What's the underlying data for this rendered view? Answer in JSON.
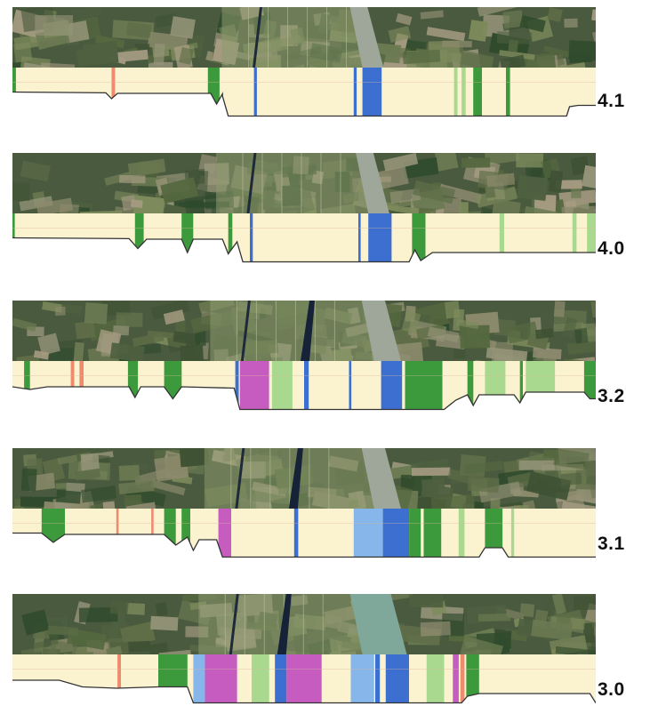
{
  "colors": {
    "base": "#fbf2cf",
    "forest": "#3c9a3c",
    "grass": "#a9d98e",
    "urban": "#ef8a6e",
    "water": "#3d6fd0",
    "water_shallow": "#86b6ea",
    "industrial": "#c65bc0",
    "profile_line": "#333333",
    "satellite_dark": "#4a5a3e",
    "satellite_light": "#7e8c66",
    "river": "#9fa79a",
    "canal": "#1e2a3a"
  },
  "panels": [
    {
      "label": "4.1",
      "segments": [
        {
          "from": 0.0,
          "to": 0.006,
          "type": "forest"
        },
        {
          "from": 0.17,
          "to": 0.176,
          "type": "urban"
        },
        {
          "from": 0.335,
          "to": 0.355,
          "type": "forest"
        },
        {
          "from": 0.414,
          "to": 0.419,
          "type": "water"
        },
        {
          "from": 0.585,
          "to": 0.59,
          "type": "water"
        },
        {
          "from": 0.6,
          "to": 0.633,
          "type": "water"
        },
        {
          "from": 0.757,
          "to": 0.763,
          "type": "grass"
        },
        {
          "from": 0.77,
          "to": 0.777,
          "type": "grass"
        },
        {
          "from": 0.79,
          "to": 0.805,
          "type": "forest"
        },
        {
          "from": 0.846,
          "to": 0.853,
          "type": "forest"
        }
      ]
    },
    {
      "label": "4.0",
      "segments": [
        {
          "from": 0.0,
          "to": 0.004,
          "type": "forest"
        },
        {
          "from": 0.21,
          "to": 0.225,
          "type": "forest"
        },
        {
          "from": 0.29,
          "to": 0.31,
          "type": "forest"
        },
        {
          "from": 0.37,
          "to": 0.377,
          "type": "forest"
        },
        {
          "from": 0.407,
          "to": 0.412,
          "type": "water"
        },
        {
          "from": 0.593,
          "to": 0.597,
          "type": "water"
        },
        {
          "from": 0.61,
          "to": 0.65,
          "type": "water"
        },
        {
          "from": 0.685,
          "to": 0.708,
          "type": "forest"
        },
        {
          "from": 0.835,
          "to": 0.843,
          "type": "grass"
        },
        {
          "from": 0.96,
          "to": 0.967,
          "type": "grass"
        },
        {
          "from": 0.985,
          "to": 1.0,
          "type": "grass"
        }
      ]
    },
    {
      "label": "3.2",
      "segments": [
        {
          "from": 0.02,
          "to": 0.03,
          "type": "forest"
        },
        {
          "from": 0.1,
          "to": 0.106,
          "type": "urban"
        },
        {
          "from": 0.115,
          "to": 0.122,
          "type": "urban"
        },
        {
          "from": 0.198,
          "to": 0.215,
          "type": "forest"
        },
        {
          "from": 0.26,
          "to": 0.29,
          "type": "forest"
        },
        {
          "from": 0.382,
          "to": 0.388,
          "type": "water"
        },
        {
          "from": 0.39,
          "to": 0.44,
          "type": "industrial"
        },
        {
          "from": 0.445,
          "to": 0.48,
          "type": "grass"
        },
        {
          "from": 0.5,
          "to": 0.508,
          "type": "water"
        },
        {
          "from": 0.577,
          "to": 0.581,
          "type": "water"
        },
        {
          "from": 0.632,
          "to": 0.668,
          "type": "water"
        },
        {
          "from": 0.673,
          "to": 0.737,
          "type": "forest"
        },
        {
          "from": 0.78,
          "to": 0.79,
          "type": "forest"
        },
        {
          "from": 0.81,
          "to": 0.845,
          "type": "grass"
        },
        {
          "from": 0.87,
          "to": 0.875,
          "type": "forest"
        },
        {
          "from": 0.88,
          "to": 0.93,
          "type": "grass"
        },
        {
          "from": 0.98,
          "to": 1.0,
          "type": "forest"
        }
      ]
    },
    {
      "label": "3.1",
      "segments": [
        {
          "from": 0.05,
          "to": 0.09,
          "type": "forest"
        },
        {
          "from": 0.178,
          "to": 0.182,
          "type": "urban"
        },
        {
          "from": 0.238,
          "to": 0.242,
          "type": "urban"
        },
        {
          "from": 0.26,
          "to": 0.28,
          "type": "forest"
        },
        {
          "from": 0.29,
          "to": 0.305,
          "type": "forest"
        },
        {
          "from": 0.353,
          "to": 0.375,
          "type": "industrial"
        },
        {
          "from": 0.483,
          "to": 0.49,
          "type": "water"
        },
        {
          "from": 0.585,
          "to": 0.635,
          "type": "water_shallow"
        },
        {
          "from": 0.635,
          "to": 0.68,
          "type": "water"
        },
        {
          "from": 0.68,
          "to": 0.7,
          "type": "forest"
        },
        {
          "from": 0.705,
          "to": 0.735,
          "type": "forest"
        },
        {
          "from": 0.765,
          "to": 0.775,
          "type": "grass"
        },
        {
          "from": 0.81,
          "to": 0.84,
          "type": "forest"
        },
        {
          "from": 0.855,
          "to": 0.86,
          "type": "grass"
        }
      ]
    },
    {
      "label": "3.0",
      "segments": [
        {
          "from": 0.18,
          "to": 0.186,
          "type": "urban"
        },
        {
          "from": 0.25,
          "to": 0.3,
          "type": "forest"
        },
        {
          "from": 0.31,
          "to": 0.33,
          "type": "water_shallow"
        },
        {
          "from": 0.33,
          "to": 0.385,
          "type": "industrial"
        },
        {
          "from": 0.41,
          "to": 0.44,
          "type": "grass"
        },
        {
          "from": 0.45,
          "to": 0.47,
          "type": "water"
        },
        {
          "from": 0.47,
          "to": 0.53,
          "type": "industrial"
        },
        {
          "from": 0.58,
          "to": 0.62,
          "type": "water_shallow"
        },
        {
          "from": 0.622,
          "to": 0.63,
          "type": "water"
        },
        {
          "from": 0.64,
          "to": 0.68,
          "type": "water"
        },
        {
          "from": 0.71,
          "to": 0.74,
          "type": "grass"
        },
        {
          "from": 0.755,
          "to": 0.765,
          "type": "industrial"
        },
        {
          "from": 0.768,
          "to": 0.775,
          "type": "urban"
        },
        {
          "from": 0.778,
          "to": 0.8,
          "type": "forest"
        }
      ]
    }
  ]
}
